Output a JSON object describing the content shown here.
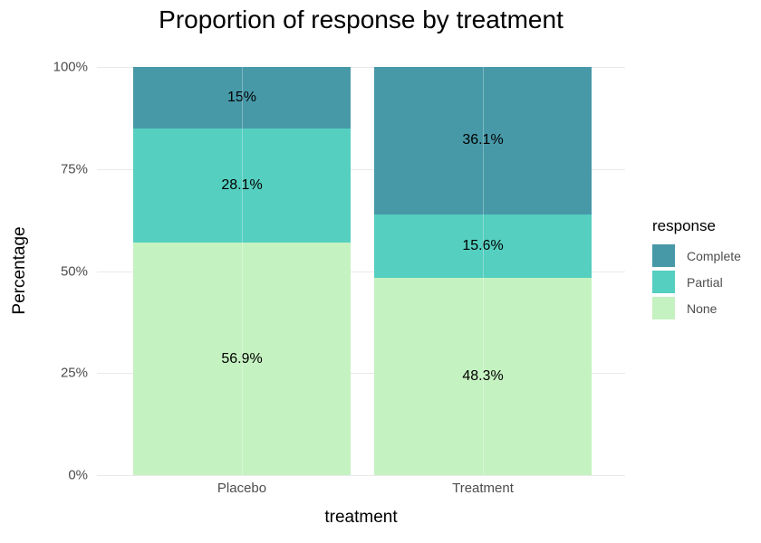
{
  "title": "Proportion of response by treatment",
  "axes": {
    "y_label": "Percentage",
    "x_label": "treatment",
    "y_ticks": [
      "100%",
      "75%",
      "50%",
      "25%",
      "0%"
    ],
    "x_ticks": [
      "Placebo",
      "Treatment"
    ]
  },
  "legend": {
    "title": "response",
    "items": [
      {
        "label": "Complete",
        "color": "#4799A8"
      },
      {
        "label": "Partial",
        "color": "#55CFC0"
      },
      {
        "label": "None",
        "color": "#C5F2C1"
      }
    ]
  },
  "chart_data": {
    "type": "bar",
    "subtype": "stacked-100-percent",
    "title": "Proportion of response by treatment",
    "xlabel": "treatment",
    "ylabel": "Percentage",
    "categories": [
      "Placebo",
      "Treatment"
    ],
    "series": [
      {
        "name": "Complete",
        "values": [
          15,
          36.1
        ],
        "color": "#4799A8"
      },
      {
        "name": "Partial",
        "values": [
          28.1,
          15.6
        ],
        "color": "#55CFC0"
      },
      {
        "name": "None",
        "values": [
          56.9,
          48.3
        ],
        "color": "#C5F2C1"
      }
    ],
    "stack_order": "top-to-bottom",
    "bar_labels": [
      [
        "15%",
        "28.1%",
        "56.9%"
      ],
      [
        "36.1%",
        "15.6%",
        "48.3%"
      ]
    ],
    "ylim": [
      0,
      100
    ],
    "y_tick_values": [
      100,
      75,
      50,
      25,
      0
    ],
    "grid": "horizontal-major-only",
    "legend_position": "right",
    "background": "#FFFFFF"
  },
  "colors": {
    "gridline": "#E9E9E9",
    "tick_text": "#4D4D4D",
    "text": "#000000",
    "background": "#FFFFFF"
  }
}
